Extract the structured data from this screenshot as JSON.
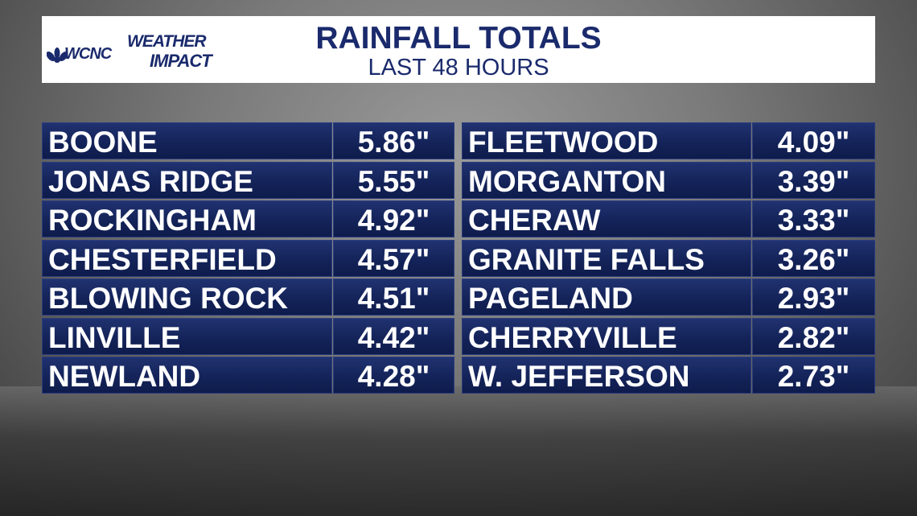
{
  "header": {
    "logo": {
      "station": "WCNC",
      "brand_top": "WEATHER",
      "brand_bottom": "IMPACT"
    },
    "title": "RAINFALL TOTALS",
    "subtitle": "LAST 48 HOURS"
  },
  "table": {
    "columns": [
      {
        "rows": [
          [
            "BOONE",
            "5.86\""
          ],
          [
            "JONAS RIDGE",
            "5.55\""
          ],
          [
            "ROCKINGHAM",
            "4.92\""
          ],
          [
            "CHESTERFIELD",
            "4.57\""
          ],
          [
            "BLOWING ROCK",
            "4.51\""
          ],
          [
            "LINVILLE",
            "4.42\""
          ],
          [
            "NEWLAND",
            "4.28\""
          ]
        ]
      },
      {
        "rows": [
          [
            "FLEETWOOD",
            "4.09\""
          ],
          [
            "MORGANTON",
            "3.39\""
          ],
          [
            "CHERAW",
            "3.33\""
          ],
          [
            "GRANITE FALLS",
            "3.26\""
          ],
          [
            "PAGELAND",
            "2.93\""
          ],
          [
            "CHERRYVILLE",
            "2.82\""
          ],
          [
            "W. JEFFERSON",
            "2.73\""
          ]
        ]
      }
    ]
  }
}
